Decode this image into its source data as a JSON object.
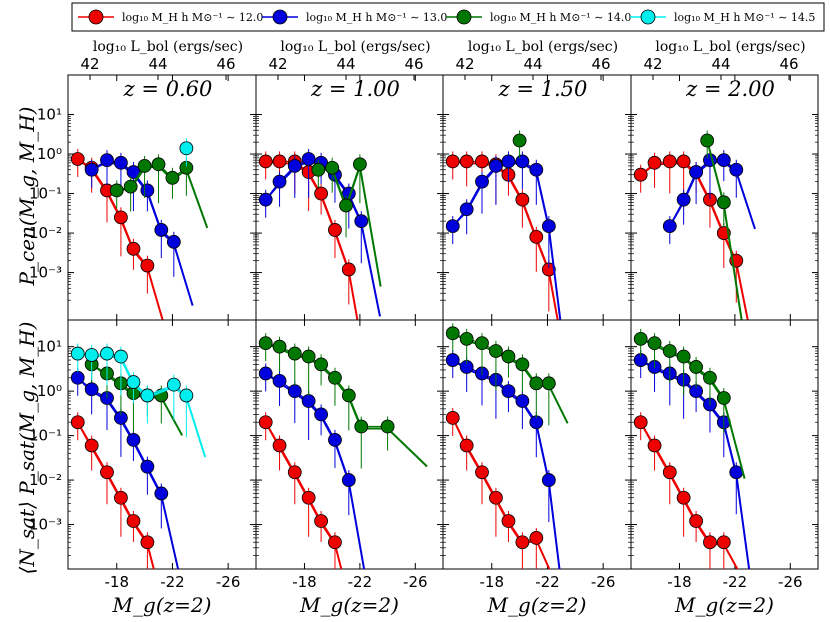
{
  "chart_data": {
    "type": "line",
    "panels_description": "2 rows x 4 columns of panels",
    "legend": [
      {
        "label": "log₁₀ M_H h M⊙⁻¹ ∼ 12.0",
        "color": "#ee0000"
      },
      {
        "label": "log₁₀ M_H h M⊙⁻¹ ∼ 13.0",
        "color": "#0000dd"
      },
      {
        "label": "log₁₀ M_H h M⊙⁻¹ ∼ 14.0",
        "color": "#007700"
      },
      {
        "label": "log₁₀ M_H h M⊙⁻¹ ∼ 14.5",
        "color": "#00eeee"
      }
    ],
    "legend_placement": "top",
    "columns": [
      {
        "z_label": "z = 0.60"
      },
      {
        "z_label": "z = 1.00"
      },
      {
        "z_label": "z = 1.50"
      },
      {
        "z_label": "z = 2.00"
      }
    ],
    "top_axis": {
      "label": "log₁₀ L_bol (ergs/sec)",
      "ticks": [
        "42",
        "44",
        "46"
      ]
    },
    "x_axis": {
      "label": "M_g(z=2)",
      "ticks": [
        "-18",
        "-22",
        "-26"
      ],
      "range": [
        -14.5,
        -28.0
      ],
      "tick_values": [
        -18,
        -22,
        -26
      ]
    },
    "rows": [
      {
        "ylabel": "P_cen(M_g, M_H)",
        "yticks": [
          "10¹",
          "10⁰",
          "10⁻¹",
          "10⁻²",
          "10⁻³"
        ],
        "ylog_range": [
          -4.2,
          2.0
        ]
      },
      {
        "ylabel": "⟨N_sat⟩ P_sat(M_g, M_H)",
        "yticks": [
          "10¹",
          "10⁰",
          "10⁻¹",
          "10⁻²",
          "10⁻³"
        ],
        "ylog_range": [
          -4.0,
          1.6
        ]
      }
    ],
    "series": [
      {
        "row": 0,
        "col": 0,
        "name": "12.0",
        "x": [
          -15.2,
          -16.2,
          -17.3,
          -18.3,
          -19.2,
          -20.2
        ],
        "y": [
          0.75,
          0.45,
          0.12,
          0.025,
          0.004,
          0.0015
        ]
      },
      {
        "row": 0,
        "col": 0,
        "name": "13.0",
        "x": [
          -16.2,
          -17.3,
          -18.3,
          -19.2,
          -20.2,
          -21.2,
          -22.1
        ],
        "y": [
          0.4,
          0.7,
          0.6,
          0.35,
          0.12,
          0.012,
          0.006
        ]
      },
      {
        "row": 0,
        "col": 0,
        "name": "14.0",
        "x": [
          -18.0,
          -19.0,
          -20.0,
          -21.0,
          -22.0,
          -23.0
        ],
        "y": [
          0.12,
          0.15,
          0.5,
          0.55,
          0.25,
          0.45
        ]
      },
      {
        "row": 0,
        "col": 0,
        "name": "14.5",
        "x": [
          -23.0
        ],
        "y": [
          1.4
        ]
      },
      {
        "row": 0,
        "col": 1,
        "name": "12.0",
        "x": [
          -15.2,
          -16.2,
          -17.3,
          -18.3,
          -19.2,
          -20.2,
          -21.2
        ],
        "y": [
          0.65,
          0.65,
          0.65,
          0.35,
          0.1,
          0.012,
          0.0012
        ]
      },
      {
        "row": 0,
        "col": 1,
        "name": "13.0",
        "x": [
          -15.2,
          -16.2,
          -17.3,
          -18.3,
          -19.2,
          -20.2,
          -21.2,
          -22.1
        ],
        "y": [
          0.07,
          0.2,
          0.5,
          0.75,
          0.6,
          0.3,
          0.1,
          0.02
        ]
      },
      {
        "row": 0,
        "col": 1,
        "name": "14.0",
        "x": [
          -19.0,
          -20.0,
          -21.0,
          -22.0
        ],
        "y": [
          0.4,
          0.45,
          0.05,
          0.55
        ]
      },
      {
        "row": 0,
        "col": 2,
        "name": "12.0",
        "x": [
          -15.2,
          -16.2,
          -17.3,
          -18.3,
          -19.2,
          -20.2,
          -21.2,
          -22.1
        ],
        "y": [
          0.65,
          0.65,
          0.65,
          0.55,
          0.3,
          0.07,
          0.008,
          0.0012
        ]
      },
      {
        "row": 0,
        "col": 2,
        "name": "13.0",
        "x": [
          -15.2,
          -16.2,
          -17.3,
          -18.3,
          -19.2,
          -20.2,
          -21.2,
          -22.1
        ],
        "y": [
          0.015,
          0.04,
          0.2,
          0.5,
          0.65,
          0.65,
          0.4,
          0.015
        ]
      },
      {
        "row": 0,
        "col": 2,
        "name": "14.0",
        "x": [
          -20.0
        ],
        "y": [
          2.2
        ]
      },
      {
        "row": 0,
        "col": 3,
        "name": "12.0",
        "x": [
          -15.2,
          -16.2,
          -17.3,
          -18.3,
          -19.2,
          -20.2,
          -21.2,
          -22.1
        ],
        "y": [
          0.3,
          0.6,
          0.65,
          0.65,
          0.35,
          0.07,
          0.01,
          0.002
        ]
      },
      {
        "row": 0,
        "col": 3,
        "name": "13.0",
        "x": [
          -17.3,
          -18.3,
          -19.2,
          -20.2,
          -21.2,
          -22.1
        ],
        "y": [
          0.015,
          0.07,
          0.35,
          0.7,
          0.7,
          0.4
        ]
      },
      {
        "row": 0,
        "col": 3,
        "name": "14.0",
        "x": [
          -20.0,
          -21.2
        ],
        "y": [
          2.2,
          0.06
        ]
      },
      {
        "row": 1,
        "col": 0,
        "name": "12.0",
        "x": [
          -15.2,
          -16.2,
          -17.3,
          -18.3,
          -19.2,
          -20.2
        ],
        "y": [
          0.2,
          0.06,
          0.015,
          0.004,
          0.0012,
          0.0004
        ]
      },
      {
        "row": 1,
        "col": 0,
        "name": "13.0",
        "x": [
          -15.2,
          -16.2,
          -17.3,
          -18.3,
          -19.2,
          -20.2,
          -21.2
        ],
        "y": [
          2.0,
          1.1,
          0.7,
          0.25,
          0.08,
          0.02,
          0.005
        ]
      },
      {
        "row": 1,
        "col": 0,
        "name": "14.0",
        "x": [
          -16.2,
          -17.3,
          -18.3,
          -19.2,
          -20.2,
          -21.2
        ],
        "y": [
          4.0,
          2.5,
          1.5,
          0.9,
          0.8,
          0.8
        ]
      },
      {
        "row": 1,
        "col": 0,
        "name": "14.5",
        "x": [
          -15.2,
          -16.2,
          -17.3,
          -18.3,
          -19.2,
          -20.2,
          -22.1,
          -23.0
        ],
        "y": [
          7.0,
          6.5,
          7.0,
          6.0,
          1.6,
          0.8,
          1.4,
          0.8
        ]
      },
      {
        "row": 1,
        "col": 1,
        "name": "12.0",
        "x": [
          -15.2,
          -16.2,
          -17.3,
          -18.3,
          -19.2,
          -20.2
        ],
        "y": [
          0.2,
          0.06,
          0.015,
          0.004,
          0.0012,
          0.0004
        ]
      },
      {
        "row": 1,
        "col": 1,
        "name": "13.0",
        "x": [
          -15.2,
          -16.2,
          -17.3,
          -18.3,
          -19.2,
          -20.2,
          -21.2
        ],
        "y": [
          2.5,
          1.7,
          1.0,
          0.6,
          0.3,
          0.08,
          0.01
        ]
      },
      {
        "row": 1,
        "col": 1,
        "name": "14.0",
        "x": [
          -15.2,
          -16.2,
          -17.3,
          -18.3,
          -19.2,
          -20.2,
          -21.2,
          -22.1,
          -24.0
        ],
        "y": [
          12.0,
          10.0,
          7.0,
          6.0,
          4.0,
          2.0,
          0.8,
          0.16,
          0.16
        ]
      },
      {
        "row": 1,
        "col": 2,
        "name": "12.0",
        "x": [
          -15.2,
          -16.2,
          -17.3,
          -18.3,
          -19.2,
          -20.2,
          -21.2
        ],
        "y": [
          0.25,
          0.06,
          0.015,
          0.004,
          0.0012,
          0.0004,
          0.0005
        ]
      },
      {
        "row": 1,
        "col": 2,
        "name": "13.0",
        "x": [
          -15.2,
          -16.2,
          -17.3,
          -18.3,
          -19.2,
          -20.2,
          -21.2,
          -22.1
        ],
        "y": [
          5.0,
          3.5,
          2.5,
          1.8,
          1.0,
          0.6,
          0.2,
          0.01
        ]
      },
      {
        "row": 1,
        "col": 2,
        "name": "14.0",
        "x": [
          -15.2,
          -16.2,
          -17.3,
          -18.3,
          -19.2,
          -20.2,
          -21.2,
          -22.1
        ],
        "y": [
          20.0,
          15.0,
          12.0,
          8.0,
          6.0,
          4.0,
          1.5,
          1.5
        ]
      },
      {
        "row": 1,
        "col": 3,
        "name": "12.0",
        "x": [
          -15.2,
          -16.2,
          -17.3,
          -18.3,
          -19.2,
          -20.2,
          -21.2
        ],
        "y": [
          0.2,
          0.06,
          0.015,
          0.004,
          0.0012,
          0.0004,
          0.0004
        ]
      },
      {
        "row": 1,
        "col": 3,
        "name": "13.0",
        "x": [
          -15.2,
          -16.2,
          -17.3,
          -18.3,
          -19.2,
          -20.2,
          -21.2,
          -22.1
        ],
        "y": [
          5.0,
          3.5,
          2.5,
          1.8,
          1.0,
          0.5,
          0.2,
          0.015
        ]
      },
      {
        "row": 1,
        "col": 3,
        "name": "14.0",
        "x": [
          -15.2,
          -16.2,
          -17.3,
          -18.3,
          -19.2,
          -20.2,
          -21.2
        ],
        "y": [
          15.0,
          12.0,
          8.0,
          6.0,
          3.5,
          2.0,
          0.7
        ]
      }
    ]
  }
}
